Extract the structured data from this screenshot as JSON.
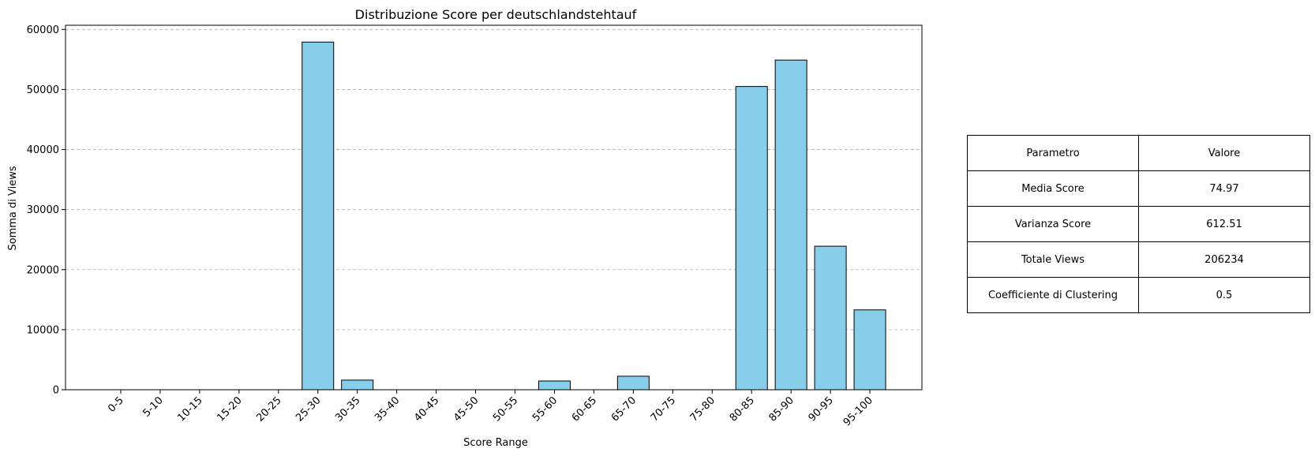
{
  "chart_data": {
    "type": "bar",
    "title": "Distribuzione Score per deutschlandstehtauf",
    "xlabel": "Score Range",
    "ylabel": "Somma di Views",
    "categories": [
      "0-5",
      "5-10",
      "10-15",
      "15-20",
      "20-25",
      "25-30",
      "30-35",
      "35-40",
      "40-45",
      "45-50",
      "50-55",
      "55-60",
      "60-65",
      "65-70",
      "70-75",
      "75-80",
      "80-85",
      "85-90",
      "90-95",
      "95-100"
    ],
    "values": [
      0,
      0,
      0,
      0,
      0,
      57900,
      1600,
      0,
      0,
      0,
      0,
      1450,
      0,
      2250,
      0,
      0,
      50500,
      54900,
      23900,
      13300
    ],
    "ylim": [
      0,
      60700
    ],
    "yticks": [
      0,
      10000,
      20000,
      30000,
      40000,
      50000,
      60000
    ],
    "grid": "horizontal dashed",
    "bar_color": "#87ceeb",
    "edge_color": "#000000"
  },
  "table": {
    "header": [
      "Parametro",
      "Valore"
    ],
    "rows": [
      [
        "Media Score",
        "74.97"
      ],
      [
        "Varianza Score",
        "612.51"
      ],
      [
        "Totale Views",
        "206234"
      ],
      [
        "Coefficiente di Clustering",
        "0.5"
      ]
    ]
  }
}
